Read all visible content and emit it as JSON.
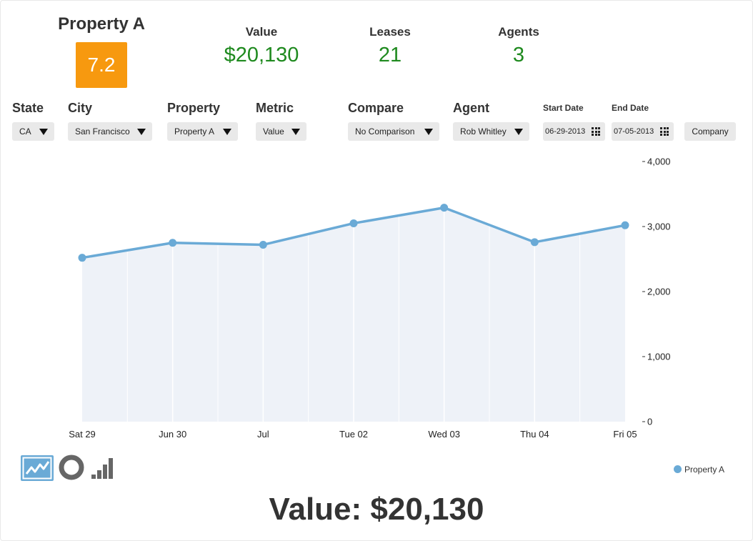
{
  "header": {
    "property_title": "Property A",
    "score": "7.2",
    "stats": {
      "value": {
        "label": "Value",
        "value": "$20,130"
      },
      "leases": {
        "label": "Leases",
        "value": "21"
      },
      "agents": {
        "label": "Agents",
        "value": "3"
      }
    }
  },
  "filters": {
    "state": {
      "label": "State",
      "value": "CA"
    },
    "city": {
      "label": "City",
      "value": "San Francisco"
    },
    "property": {
      "label": "Property",
      "value": "Property A"
    },
    "metric": {
      "label": "Metric",
      "value": "Value"
    },
    "compare": {
      "label": "Compare",
      "value": "No Comparison"
    },
    "agent": {
      "label": "Agent",
      "value": "Rob Whitley"
    },
    "start_date": {
      "label": "Start Date",
      "value": "06-29-2013"
    },
    "end_date": {
      "label": "End Date",
      "value": "07-05-2013"
    },
    "company_button": "Company"
  },
  "colors": {
    "accent": "#6aaad6",
    "area_fill": "#eef2f8",
    "score_bg": "#f7990f",
    "stat_green": "#1f8a1f"
  },
  "chart_data": {
    "type": "area",
    "categories": [
      "Sat 29",
      "Jun 30",
      "Jul",
      "Tue 02",
      "Wed 03",
      "Thu 04",
      "Fri 05"
    ],
    "series": [
      {
        "name": "Property A",
        "values": [
          2520,
          2750,
          2720,
          3050,
          3290,
          2760,
          3020
        ]
      }
    ],
    "y_ticks": [
      "0",
      "1,000",
      "2,000",
      "3,000",
      "4,000"
    ],
    "ylim": [
      0,
      4000
    ],
    "y_axis_side": "right",
    "legend_position": "bottom-right",
    "title": "",
    "xlabel": "",
    "ylabel": ""
  },
  "chart_types": {
    "icons": [
      "line-chart-icon",
      "donut-chart-icon",
      "bar-chart-icon"
    ],
    "active": "line-chart-icon"
  },
  "footer": {
    "summary": "Value: $20,130"
  }
}
